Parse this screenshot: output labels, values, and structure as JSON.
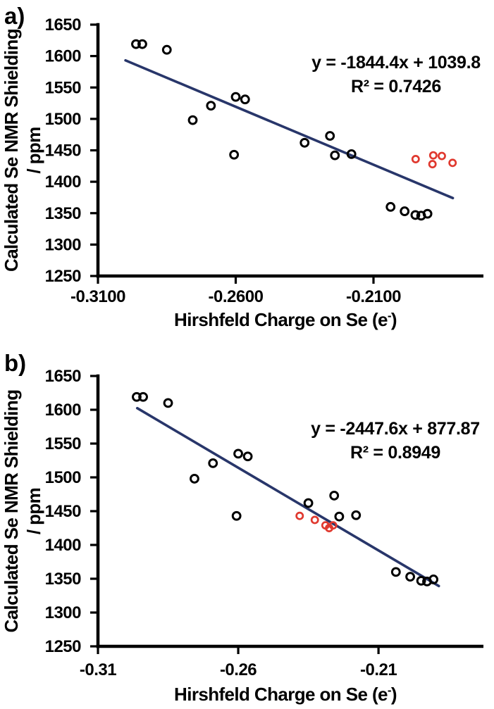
{
  "figure_title": "",
  "chart_data": [
    {
      "type": "scatter",
      "panel_label": "a)",
      "xlabel": {
        "pre": "Hirshfeld Charge on Se (e",
        "sup": "-",
        "post": ")"
      },
      "ylabel_lines": [
        "Calculated Se NMR Shielding",
        "/ ppm"
      ],
      "xlim": [
        -0.31,
        -0.1701
      ],
      "ylim": [
        1250,
        1650
      ],
      "grid": false,
      "legend": null,
      "x_ticks": [
        {
          "value": -0.31,
          "label": "-0.3100"
        },
        {
          "value": -0.26,
          "label": "-0.2600"
        },
        {
          "value": -0.21,
          "label": "-0.2100"
        }
      ],
      "y_ticks": [
        1650,
        1600,
        1550,
        1500,
        1450,
        1400,
        1350,
        1300,
        1250
      ],
      "annotation": {
        "equation": "y = -1844.4x + 1039.8",
        "r2": "R² = 0.7426",
        "color": "#28366A"
      },
      "trendline": {
        "slope": -1844.4,
        "intercept": 1039.8,
        "x_start": -0.3,
        "x_end": -0.1812,
        "color": "#28366A"
      },
      "series": [
        {
          "name": "black-open-circles",
          "marker": "open-circle",
          "color": "#000000",
          "points": [
            [
              -0.2962,
              1619
            ],
            [
              -0.2939,
              1619
            ],
            [
              -0.285,
              1610
            ],
            [
              -0.2756,
              1498
            ],
            [
              -0.269,
              1521
            ],
            [
              -0.2606,
              1443
            ],
            [
              -0.26,
              1535
            ],
            [
              -0.2566,
              1531
            ],
            [
              -0.235,
              1462
            ],
            [
              -0.2258,
              1473
            ],
            [
              -0.224,
              1442
            ],
            [
              -0.218,
              1444
            ],
            [
              -0.2038,
              1360
            ],
            [
              -0.1987,
              1353
            ],
            [
              -0.1948,
              1347
            ],
            [
              -0.1927,
              1346
            ],
            [
              -0.1904,
              1349
            ]
          ]
        },
        {
          "name": "red-open-circles",
          "marker": "open-circle",
          "color": "#E0392F",
          "points": [
            [
              -0.1947,
              1436
            ],
            [
              -0.1886,
              1428
            ],
            [
              -0.1883,
              1442
            ],
            [
              -0.1852,
              1441
            ],
            [
              -0.1813,
              1430
            ]
          ]
        }
      ]
    },
    {
      "type": "scatter",
      "panel_label": "b)",
      "xlabel": {
        "pre": "Hirshfeld Charge on Se (e",
        "sup": "-",
        "post": ")"
      },
      "ylabel_lines": [
        "Calculated Se NMR Shielding",
        "/ ppm"
      ],
      "xlim": [
        -0.31,
        -0.1726
      ],
      "ylim": [
        1250,
        1650
      ],
      "grid": false,
      "legend": null,
      "x_ticks": [
        {
          "value": -0.31,
          "label": "-0.31"
        },
        {
          "value": -0.26,
          "label": "-0.26"
        },
        {
          "value": -0.21,
          "label": "-0.21"
        }
      ],
      "y_ticks": [
        1650,
        1600,
        1550,
        1500,
        1450,
        1400,
        1350,
        1300,
        1250
      ],
      "annotation": {
        "equation": "y = -2447.6x + 877.87",
        "r2": "R² = 0.8949",
        "color": "#28366A"
      },
      "trendline": {
        "slope": -2447.6,
        "intercept": 877.87,
        "x_start": -0.296,
        "x_end": -0.1885,
        "color": "#28366A"
      },
      "series": [
        {
          "name": "black-open-circles",
          "marker": "open-circle",
          "color": "#000000",
          "points": [
            [
              -0.2962,
              1619
            ],
            [
              -0.2939,
              1619
            ],
            [
              -0.285,
              1610
            ],
            [
              -0.2756,
              1498
            ],
            [
              -0.269,
              1521
            ],
            [
              -0.2606,
              1443
            ],
            [
              -0.26,
              1535
            ],
            [
              -0.2566,
              1531
            ],
            [
              -0.235,
              1462
            ],
            [
              -0.2258,
              1473
            ],
            [
              -0.224,
              1442
            ],
            [
              -0.218,
              1444
            ],
            [
              -0.2038,
              1360
            ],
            [
              -0.1987,
              1353
            ],
            [
              -0.1948,
              1347
            ],
            [
              -0.1927,
              1346
            ],
            [
              -0.1904,
              1349
            ]
          ]
        },
        {
          "name": "red-open-circles",
          "marker": "open-circle",
          "color": "#E0392F",
          "points": [
            [
              -0.2381,
              1443
            ],
            [
              -0.2327,
              1437
            ],
            [
              -0.2289,
              1429
            ],
            [
              -0.2276,
              1425
            ],
            [
              -0.2262,
              1429
            ]
          ]
        }
      ]
    }
  ]
}
